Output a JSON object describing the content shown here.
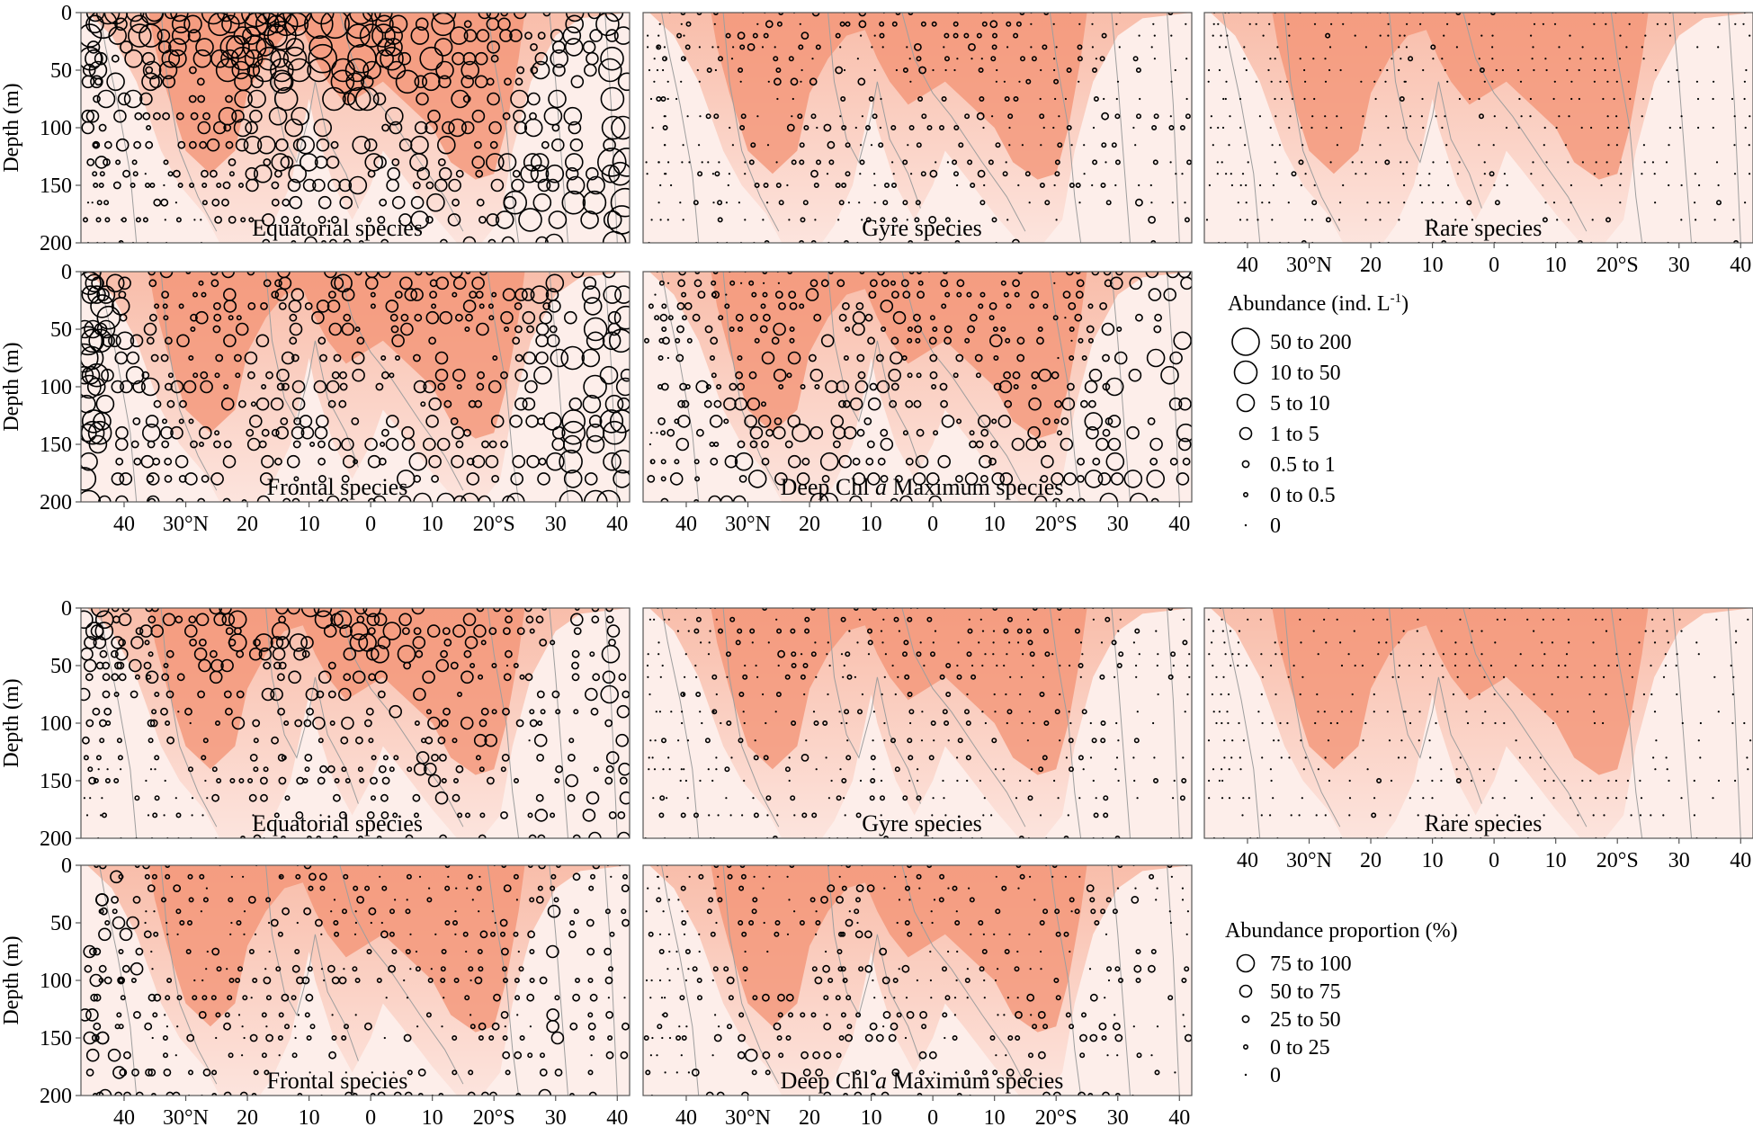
{
  "figure": {
    "colors": {
      "high": "#f39273",
      "mid": "#f8b8a3",
      "low": "#fde6e0",
      "contour": "#9e9e9e",
      "frame": "#555555",
      "bubble": "#000000"
    }
  },
  "chart_data": {
    "type": "scatter",
    "description_style": "bubble section plots over shaded depth-latitude field",
    "x_ticks": [
      "40",
      "30°N",
      "20",
      "10",
      "0",
      "10",
      "20°S",
      "30",
      "40"
    ],
    "x_tick_latitudes": [
      40,
      30,
      20,
      10,
      0,
      -10,
      -20,
      -30,
      -40
    ],
    "xlim": [
      47,
      -42
    ],
    "y_ticks": [
      "0",
      "50",
      "100",
      "150",
      "200"
    ],
    "y_tick_values": [
      0,
      50,
      100,
      150,
      200
    ],
    "ylim": [
      0,
      200
    ],
    "ylabel": "Depth (m)",
    "legend_abundance": {
      "title": "Abundance (ind. L",
      "title_sup": "-1",
      "title_end": ")",
      "classes": [
        {
          "label": "50  to  200",
          "size": 7
        },
        {
          "label": "10  to  50",
          "size": 6
        },
        {
          "label": "5  to  10",
          "size": 5
        },
        {
          "label": "1  to  5",
          "size": 4
        },
        {
          "label": "0.5  to  1",
          "size": 3
        },
        {
          "label": "0 to 0.5",
          "size": 2
        },
        {
          "label": "0",
          "size": 1
        }
      ]
    },
    "legend_proportion": {
      "title": "Abundance proportion  (%)",
      "classes": [
        {
          "label": "75  to  100",
          "size": 5
        },
        {
          "label": "50  to  75",
          "size": 4
        },
        {
          "label": "25  to  50",
          "size": 3
        },
        {
          "label": "0 to 25",
          "size": 2
        },
        {
          "label": "0",
          "size": 1
        }
      ]
    },
    "panels": [
      {
        "id": "abs-equatorial",
        "group": "abundance",
        "label": "Equatorial species",
        "scale": 1.0,
        "seed": 11,
        "profile": [
          [
            45,
            6,
            1
          ],
          [
            40,
            5,
            1
          ],
          [
            30,
            5,
            1
          ],
          [
            20,
            6,
            2
          ],
          [
            10,
            7,
            3
          ],
          [
            0,
            6,
            3
          ],
          [
            -10,
            5,
            4
          ],
          [
            -18,
            4,
            4
          ],
          [
            -25,
            3,
            5
          ],
          [
            -32,
            4,
            5
          ],
          [
            -40,
            5,
            6
          ]
        ]
      },
      {
        "id": "abs-gyre",
        "group": "abundance",
        "label": "Gyre species",
        "scale": 0.55,
        "seed": 23,
        "profile": [
          [
            45,
            1,
            1
          ],
          [
            40,
            2,
            1
          ],
          [
            30,
            3,
            2
          ],
          [
            20,
            4,
            3
          ],
          [
            10,
            3,
            2
          ],
          [
            0,
            3,
            3
          ],
          [
            -10,
            3,
            3
          ],
          [
            -20,
            2,
            3
          ],
          [
            -30,
            2,
            4
          ],
          [
            -40,
            1,
            3
          ]
        ]
      },
      {
        "id": "abs-rare",
        "group": "abundance",
        "label": "Rare species",
        "scale": 0.3,
        "seed": 37,
        "profile": [
          [
            45,
            1,
            1
          ],
          [
            40,
            1,
            1
          ],
          [
            30,
            2,
            2
          ],
          [
            20,
            2,
            2
          ],
          [
            10,
            2,
            2
          ],
          [
            0,
            2,
            2
          ],
          [
            -10,
            1,
            2
          ],
          [
            -20,
            1,
            2
          ],
          [
            -30,
            1,
            2
          ],
          [
            -40,
            1,
            2
          ]
        ]
      },
      {
        "id": "abs-frontal",
        "group": "abundance",
        "label": "Frontal species",
        "scale": 0.8,
        "seed": 41,
        "profile": [
          [
            46,
            7,
            7
          ],
          [
            40,
            5,
            5
          ],
          [
            30,
            3,
            4
          ],
          [
            20,
            4,
            4
          ],
          [
            10,
            5,
            4
          ],
          [
            0,
            4,
            4
          ],
          [
            -10,
            4,
            5
          ],
          [
            -20,
            3,
            5
          ],
          [
            -30,
            5,
            6
          ],
          [
            -40,
            6,
            7
          ]
        ]
      },
      {
        "id": "abs-dcm",
        "group": "abundance",
        "label": "Deep Chl a Maximum species",
        "scale": 0.75,
        "seed": 53,
        "profile": [
          [
            45,
            2,
            3
          ],
          [
            40,
            3,
            4
          ],
          [
            30,
            2,
            6
          ],
          [
            20,
            3,
            6
          ],
          [
            10,
            4,
            5
          ],
          [
            0,
            3,
            4
          ],
          [
            -10,
            3,
            5
          ],
          [
            -20,
            2,
            5
          ],
          [
            -30,
            4,
            6
          ],
          [
            -40,
            5,
            5
          ]
        ]
      },
      {
        "id": "prop-equatorial",
        "group": "proportion",
        "label": "Equatorial species",
        "scale": 0.9,
        "seed": 61,
        "profile": [
          [
            45,
            5,
            1
          ],
          [
            40,
            4,
            1
          ],
          [
            30,
            4,
            1
          ],
          [
            20,
            5,
            2
          ],
          [
            10,
            5,
            2
          ],
          [
            0,
            5,
            2
          ],
          [
            -10,
            4,
            3
          ],
          [
            -18,
            3,
            3
          ],
          [
            -25,
            2,
            3
          ],
          [
            -32,
            3,
            3
          ],
          [
            -40,
            4,
            4
          ]
        ]
      },
      {
        "id": "prop-gyre",
        "group": "proportion",
        "label": "Gyre species",
        "scale": 0.5,
        "seed": 73,
        "profile": [
          [
            45,
            1,
            1
          ],
          [
            40,
            2,
            1
          ],
          [
            30,
            3,
            2
          ],
          [
            20,
            3,
            3
          ],
          [
            10,
            3,
            2
          ],
          [
            0,
            3,
            3
          ],
          [
            -10,
            2,
            2
          ],
          [
            -20,
            2,
            3
          ],
          [
            -30,
            2,
            3
          ],
          [
            -40,
            1,
            2
          ]
        ]
      },
      {
        "id": "prop-rare",
        "group": "proportion",
        "label": "Rare species",
        "scale": 0.25,
        "seed": 83,
        "profile": [
          [
            45,
            1,
            1
          ],
          [
            40,
            1,
            1
          ],
          [
            30,
            1,
            2
          ],
          [
            20,
            1,
            2
          ],
          [
            10,
            1,
            2
          ],
          [
            0,
            1,
            2
          ],
          [
            -10,
            1,
            1
          ],
          [
            -20,
            1,
            2
          ],
          [
            -30,
            1,
            2
          ],
          [
            -40,
            1,
            2
          ]
        ]
      },
      {
        "id": "prop-frontal",
        "group": "proportion",
        "label": "Frontal species",
        "scale": 0.7,
        "seed": 97,
        "profile": [
          [
            46,
            5,
            5
          ],
          [
            40,
            4,
            4
          ],
          [
            30,
            2,
            3
          ],
          [
            20,
            2,
            3
          ],
          [
            10,
            3,
            3
          ],
          [
            0,
            2,
            3
          ],
          [
            -10,
            2,
            3
          ],
          [
            -20,
            2,
            3
          ],
          [
            -30,
            4,
            4
          ],
          [
            -40,
            3,
            3
          ]
        ]
      },
      {
        "id": "prop-dcm",
        "group": "proportion",
        "label": "Deep Chl a Maximum species",
        "scale": 0.6,
        "seed": 101,
        "profile": [
          [
            45,
            1,
            2
          ],
          [
            40,
            2,
            3
          ],
          [
            30,
            2,
            5
          ],
          [
            20,
            2,
            5
          ],
          [
            10,
            3,
            4
          ],
          [
            0,
            2,
            3
          ],
          [
            -10,
            2,
            3
          ],
          [
            -20,
            2,
            4
          ],
          [
            -30,
            3,
            4
          ],
          [
            -40,
            2,
            3
          ]
        ]
      }
    ]
  }
}
